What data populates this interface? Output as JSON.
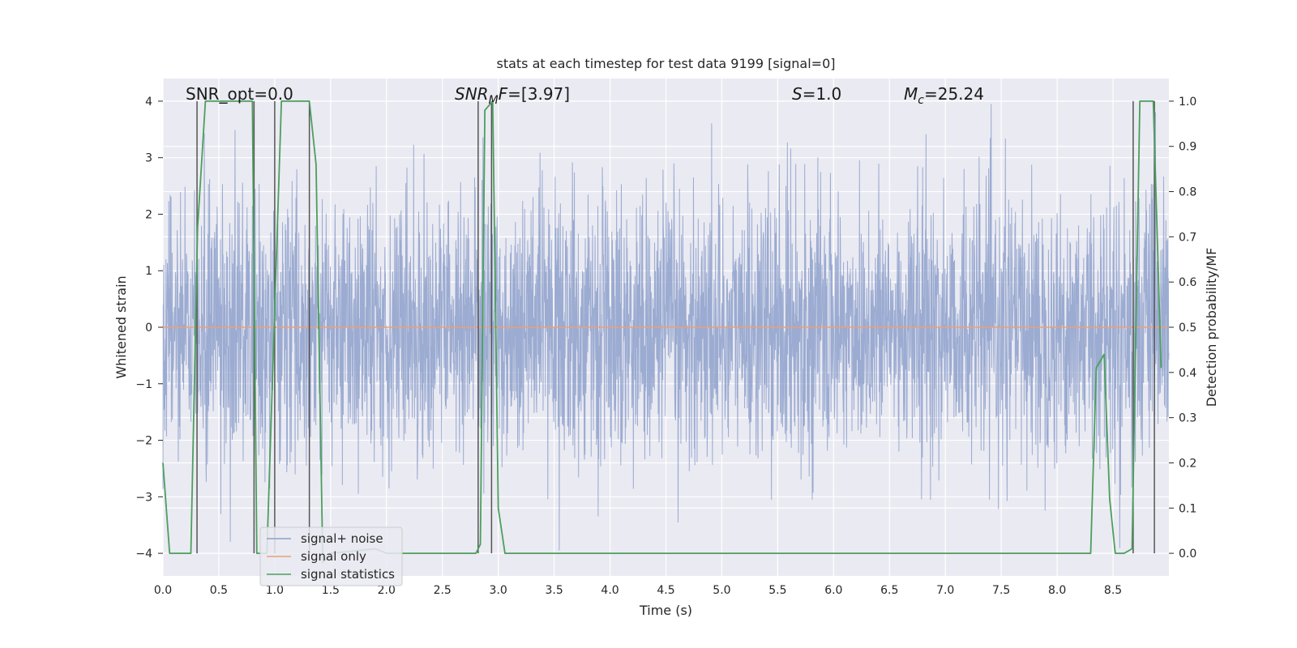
{
  "chart_data": {
    "type": "line",
    "title": "stats at each timestep for test data 9199 [signal=0]",
    "xlabel": "Time (s)",
    "ylabel": "Whitened strain",
    "ylabel_right": "Detection probability/MF",
    "xlim": [
      0.0,
      9.0
    ],
    "ylim": [
      -4.4,
      4.4
    ],
    "ylim_right": [
      -0.05,
      1.05
    ],
    "x_ticks": [
      0.0,
      0.5,
      1.0,
      1.5,
      2.0,
      2.5,
      3.0,
      3.5,
      4.0,
      4.5,
      5.0,
      5.5,
      6.0,
      6.5,
      7.0,
      7.5,
      8.0,
      8.5
    ],
    "x_tick_labels": [
      "0.0",
      "0.5",
      "1.0",
      "1.5",
      "2.0",
      "2.5",
      "3.0",
      "3.5",
      "4.0",
      "4.5",
      "5.0",
      "5.5",
      "6.0",
      "6.5",
      "7.0",
      "7.5",
      "8.0",
      "8.5"
    ],
    "y_ticks": [
      4,
      3,
      2,
      1,
      0,
      -1,
      -2,
      -3,
      -4
    ],
    "y_tick_labels": [
      "4",
      "3",
      "2",
      "1",
      "0",
      "−1",
      "−2",
      "−3",
      "−4"
    ],
    "y_ticks_right": [
      1.0,
      0.9,
      0.8,
      0.7,
      0.6,
      0.5,
      0.4,
      0.3,
      0.2,
      0.1,
      0.0
    ],
    "y_tick_labels_right": [
      "1.0",
      "0.9",
      "0.8",
      "0.7",
      "0.6",
      "0.5",
      "0.4",
      "0.3",
      "0.2",
      "0.1",
      "0.0"
    ],
    "grid": true,
    "annotations": {
      "snr_opt": "SNR_opt=0.0",
      "snr_mf_var": "SNR",
      "snr_mf_sub": "M",
      "snr_mf_tail": "F",
      "snr_mf_value": "=[3.97]",
      "s_var": "S",
      "s_value": "=1.0",
      "mc_var": "M",
      "mc_sub": "c",
      "mc_value": "=25.24"
    },
    "legend": {
      "placement": "lower-left",
      "entries": [
        "signal+ noise",
        "signal only",
        "signal statistics"
      ]
    },
    "colors": {
      "noise": "#8da0cb",
      "signal": "#e8a07a",
      "stats": "#4c9f5c",
      "vline": "#555555",
      "plot_bg": "#eaeaf2",
      "grid": "#ffffff"
    },
    "series": [
      {
        "name": "signal+ noise",
        "description_range": "dense whitened noise, roughly between -3.9 and 3.9",
        "envelope_typical": [
          -2.0,
          2.0
        ]
      },
      {
        "name": "signal only",
        "x": [
          0.0,
          9.0
        ],
        "y": [
          0.0,
          0.0
        ]
      },
      {
        "name": "signal statistics",
        "x": [
          0.0,
          0.06,
          0.25,
          0.31,
          0.38,
          0.8,
          0.84,
          0.93,
          1.06,
          1.31,
          1.37,
          1.43,
          1.5,
          1.9,
          2.0,
          2.3,
          2.8,
          2.84,
          2.88,
          2.95,
          3.0,
          3.06,
          3.1,
          5.7,
          8.3,
          8.35,
          8.42,
          8.47,
          8.52,
          8.6,
          8.67,
          8.74,
          8.86,
          8.93
        ],
        "y": [
          0.2,
          0.0,
          0.0,
          0.72,
          1.0,
          1.0,
          0.0,
          0.0,
          1.0,
          1.0,
          0.86,
          -0.02,
          0.0,
          0.01,
          0.0,
          0.0,
          0.0,
          0.02,
          0.98,
          1.0,
          0.1,
          0.0,
          0.0,
          0.0,
          0.0,
          0.41,
          0.44,
          0.12,
          0.0,
          0.0,
          0.01,
          1.0,
          1.0,
          0.41
        ]
      }
    ],
    "vertical_lines_x": [
      0.305,
      0.815,
      1.0,
      1.31,
      2.82,
      2.94,
      8.68,
      8.87
    ]
  }
}
